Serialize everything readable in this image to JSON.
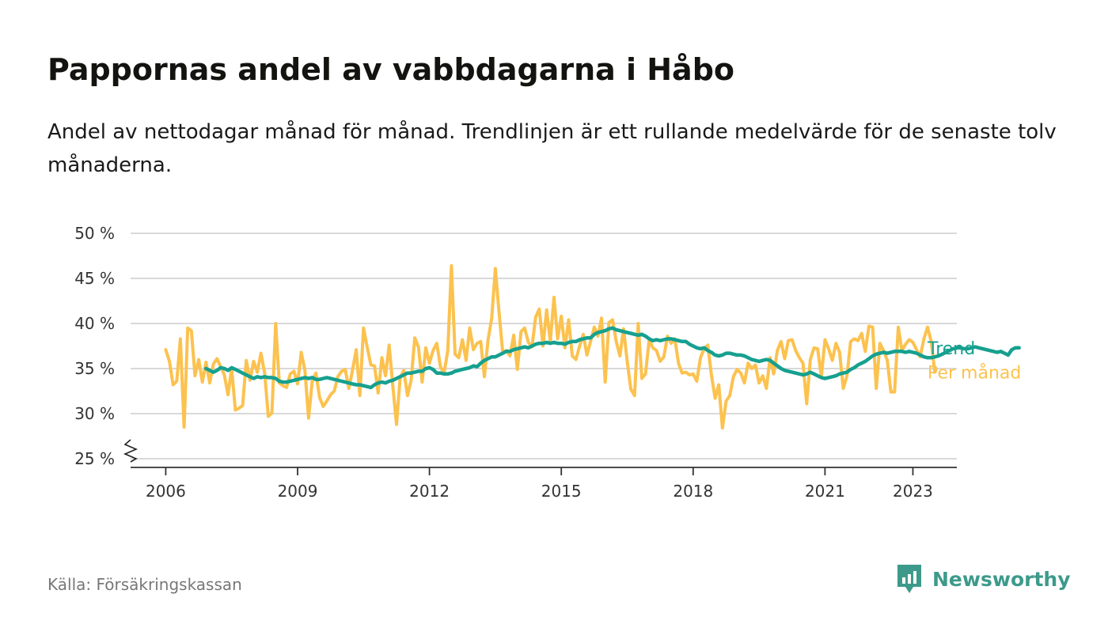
{
  "title": "Pappornas andel av vabbdagarna i Håbo",
  "subtitle": "Andel av nettodagar månad för månad. Trendlinjen är ett rullande medelvärde för de senaste tolv månaderna.",
  "source": "Källa: Försäkringskassan",
  "brand": "Newsworthy",
  "colors": {
    "trend": "#16a08f",
    "monthly": "#fcc24f",
    "grid": "#d9d9d9",
    "axis": "#333333",
    "brand": "#3d9a8b"
  },
  "chart_data": {
    "type": "line",
    "xlabel": "",
    "ylabel": "",
    "ylim": [
      25,
      50
    ],
    "y_ticks": [
      "25 %",
      "30 %",
      "35 %",
      "40 %",
      "45 %",
      "50 %"
    ],
    "x_ticks": [
      "2006",
      "2009",
      "2012",
      "2015",
      "2018",
      "2021",
      "2023"
    ],
    "x_tick_values": [
      2006,
      2009,
      2012,
      2015,
      2018,
      2021,
      2023
    ],
    "xlim": [
      2005.2,
      2024.0
    ],
    "y_axis_break": true,
    "grid": true,
    "legend": "right, at line ends",
    "series": [
      {
        "name": "Per månad",
        "color": "#fcc24f",
        "start": "2006-01",
        "values": [
          37.1,
          35.8,
          33.2,
          33.6,
          38.3,
          28.5,
          39.5,
          39.2,
          34.2,
          36.0,
          33.5,
          35.7,
          33.4,
          35.5,
          36.1,
          35.2,
          34.3,
          32.1,
          35.0,
          30.4,
          30.6,
          30.9,
          35.9,
          33.7,
          35.8,
          34.6,
          36.7,
          34.5,
          29.7,
          30.1,
          40.0,
          33.4,
          33.1,
          32.9,
          34.4,
          34.7,
          33.3,
          36.8,
          34.8,
          29.5,
          33.6,
          34.5,
          31.8,
          30.8,
          31.4,
          32.1,
          32.5,
          34.1,
          34.7,
          34.9,
          32.8,
          34.8,
          37.1,
          32.0,
          39.5,
          37.4,
          35.4,
          35.3,
          32.3,
          36.2,
          34.2,
          37.6,
          33.1,
          28.8,
          34.0,
          34.8,
          32.0,
          33.7,
          38.4,
          37.4,
          33.5,
          37.3,
          35.6,
          37.0,
          37.8,
          35.2,
          34.5,
          37.0,
          46.4,
          36.6,
          36.2,
          38.2,
          35.9,
          39.5,
          37.1,
          37.8,
          38.0,
          34.1,
          38.2,
          40.6,
          46.1,
          41.3,
          36.8,
          37.0,
          36.4,
          38.7,
          34.9,
          39.1,
          39.5,
          37.9,
          37.4,
          40.7,
          41.6,
          37.5,
          41.5,
          38.0,
          42.9,
          38.3,
          40.8,
          37.3,
          40.4,
          36.4,
          36.0,
          37.5,
          38.8,
          36.5,
          38.0,
          39.6,
          38.6,
          40.6,
          33.5,
          40.1,
          40.4,
          38.0,
          36.4,
          39.4,
          35.8,
          32.7,
          32.0,
          40.0,
          33.9,
          34.4,
          38.2,
          37.3,
          37.0,
          35.8,
          36.3,
          38.6,
          37.8,
          38.3,
          35.6,
          34.5,
          34.6,
          34.3,
          34.4,
          33.6,
          36.2,
          37.2,
          37.6,
          34.3,
          31.7,
          33.2,
          28.4,
          31.4,
          32.0,
          34.1,
          34.9,
          34.5,
          33.4,
          35.6,
          35.0,
          35.4,
          33.4,
          34.2,
          32.8,
          36.2,
          34.4,
          37.0,
          38.0,
          36.1,
          38.1,
          38.2,
          37.0,
          36.2,
          35.6,
          31.1,
          36.0,
          37.3,
          37.2,
          34.1,
          38.2,
          37.2,
          35.9,
          37.8,
          36.8,
          32.8,
          34.2,
          38.0,
          38.3,
          38.1,
          38.9,
          36.9,
          39.7,
          39.6,
          32.8,
          37.8,
          37.0,
          35.9,
          32.4,
          32.4,
          39.6,
          37.0,
          37.7,
          38.2,
          37.9,
          37.1,
          36.3,
          38.3,
          39.6,
          38.0,
          34.6
        ]
      },
      {
        "name": "Trend",
        "color": "#16a08f",
        "start": "2006-12",
        "values": [
          35.0,
          34.8,
          34.6,
          34.8,
          35.1,
          35.0,
          34.8,
          35.1,
          34.9,
          34.7,
          34.5,
          34.3,
          34.1,
          33.9,
          34.1,
          34.0,
          34.1,
          34.0,
          34.0,
          33.9,
          33.6,
          33.5,
          33.5,
          33.6,
          33.7,
          33.8,
          33.9,
          34.0,
          33.9,
          34.0,
          33.8,
          33.8,
          33.9,
          34.0,
          33.9,
          33.8,
          33.7,
          33.6,
          33.5,
          33.4,
          33.3,
          33.2,
          33.2,
          33.1,
          33.0,
          32.9,
          33.2,
          33.4,
          33.5,
          33.4,
          33.6,
          33.7,
          33.9,
          34.1,
          34.3,
          34.5,
          34.5,
          34.6,
          34.7,
          34.7,
          35.0,
          35.1,
          34.9,
          34.5,
          34.5,
          34.4,
          34.4,
          34.5,
          34.7,
          34.8,
          34.9,
          35.0,
          35.1,
          35.3,
          35.2,
          35.6,
          35.9,
          36.1,
          36.3,
          36.3,
          36.5,
          36.7,
          36.9,
          36.9,
          37.1,
          37.2,
          37.3,
          37.4,
          37.3,
          37.5,
          37.7,
          37.8,
          37.8,
          37.9,
          37.8,
          37.9,
          37.8,
          37.8,
          37.7,
          37.9,
          38.0,
          38.0,
          38.2,
          38.3,
          38.4,
          38.4,
          38.8,
          39.0,
          39.1,
          39.2,
          39.4,
          39.5,
          39.3,
          39.2,
          39.1,
          39.0,
          38.9,
          38.8,
          38.7,
          38.8,
          38.6,
          38.3,
          38.1,
          38.2,
          38.1,
          38.2,
          38.3,
          38.3,
          38.2,
          38.1,
          38.0,
          38.0,
          37.7,
          37.5,
          37.3,
          37.2,
          37.3,
          37.0,
          36.8,
          36.5,
          36.4,
          36.5,
          36.7,
          36.7,
          36.6,
          36.5,
          36.5,
          36.4,
          36.2,
          36.0,
          35.9,
          35.8,
          35.9,
          36.0,
          35.9,
          35.6,
          35.3,
          35.0,
          34.8,
          34.7,
          34.6,
          34.5,
          34.4,
          34.3,
          34.4,
          34.6,
          34.4,
          34.2,
          34.0,
          33.9,
          34.0,
          34.1,
          34.2,
          34.4,
          34.5,
          34.6,
          34.9,
          35.1,
          35.4,
          35.6,
          35.8,
          36.1,
          36.4,
          36.6,
          36.7,
          36.8,
          36.7,
          36.8,
          36.9,
          36.9,
          36.9,
          36.8,
          36.9,
          36.8,
          36.7,
          36.5,
          36.3,
          36.2,
          36.2,
          36.3,
          36.4,
          36.6,
          36.8,
          37.0,
          37.2,
          37.3,
          37.3,
          37.2,
          37.2,
          37.3,
          37.4,
          37.3,
          37.2,
          37.1,
          37.0,
          36.9,
          36.8,
          36.9,
          36.7,
          36.5,
          37.1,
          37.3,
          37.3
        ]
      }
    ]
  }
}
